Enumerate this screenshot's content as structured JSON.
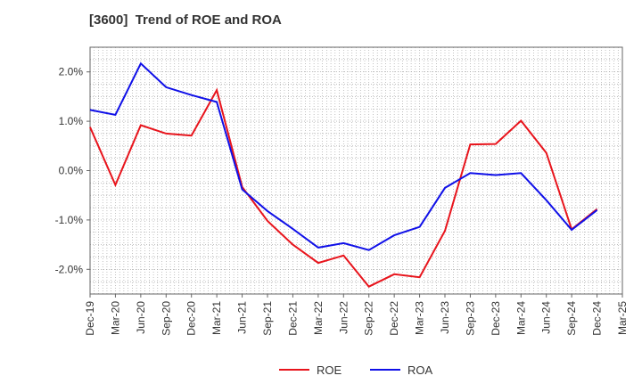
{
  "chart_data": {
    "type": "line",
    "title": "[3600]  Trend of ROE and ROA",
    "xlabel": "",
    "ylabel": "",
    "x": [
      "Dec-19",
      "Mar-20",
      "Jun-20",
      "Sep-20",
      "Dec-20",
      "Mar-21",
      "Jun-21",
      "Sep-21",
      "Dec-21",
      "Mar-22",
      "Jun-22",
      "Sep-22",
      "Dec-22",
      "Mar-23",
      "Jun-23",
      "Sep-23",
      "Dec-23",
      "Mar-24",
      "Jun-24",
      "Sep-24",
      "Dec-24",
      "Mar-25"
    ],
    "ylim": [
      -2.5,
      2.5
    ],
    "yticks": [
      2.0,
      1.0,
      0.0,
      -1.0,
      -2.0
    ],
    "ytick_labels": [
      "2.0%",
      "1.0%",
      "0.0%",
      "-1.0%",
      "-2.0%"
    ],
    "series": [
      {
        "name": "ROE",
        "color": "#e8141c",
        "values": [
          0.88,
          -0.29,
          0.92,
          0.75,
          0.71,
          1.63,
          -0.33,
          -1.02,
          -1.5,
          -1.87,
          -1.72,
          -2.35,
          -2.1,
          -2.16,
          -1.22,
          0.53,
          0.54,
          1.01,
          0.36,
          -1.19,
          -0.78,
          null
        ]
      },
      {
        "name": "ROA",
        "color": "#1010e8",
        "values": [
          1.23,
          1.13,
          2.17,
          1.69,
          1.53,
          1.39,
          -0.38,
          -0.82,
          -1.18,
          -1.56,
          -1.47,
          -1.61,
          -1.31,
          -1.14,
          -0.35,
          -0.05,
          -0.09,
          -0.05,
          -0.6,
          -1.2,
          -0.8,
          null
        ]
      }
    ],
    "grid": true,
    "legend_position": "bottom"
  }
}
